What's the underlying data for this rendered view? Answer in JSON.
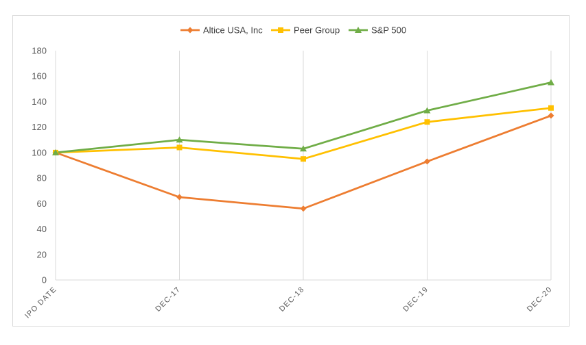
{
  "chart_data": {
    "type": "line",
    "title": "",
    "xlabel": "",
    "ylabel": "",
    "categories": [
      "IPO DATE",
      "DEC-17",
      "DEC-18",
      "DEC-19",
      "DEC-20"
    ],
    "ylim": [
      0,
      180
    ],
    "yticks": [
      0,
      20,
      40,
      60,
      80,
      100,
      120,
      140,
      160,
      180
    ],
    "grid": "vertical",
    "legend_position": "top-center",
    "series": [
      {
        "name": "Altice USA, Inc",
        "color": "#ed7d31",
        "marker": "diamond",
        "values": [
          100,
          65,
          56,
          93,
          129
        ]
      },
      {
        "name": "Peer Group",
        "color": "#ffc000",
        "marker": "square",
        "values": [
          100,
          104,
          95,
          124,
          135
        ]
      },
      {
        "name": "S&P 500",
        "color": "#70ad47",
        "marker": "triangle",
        "values": [
          100,
          110,
          103,
          133,
          155
        ]
      }
    ]
  }
}
